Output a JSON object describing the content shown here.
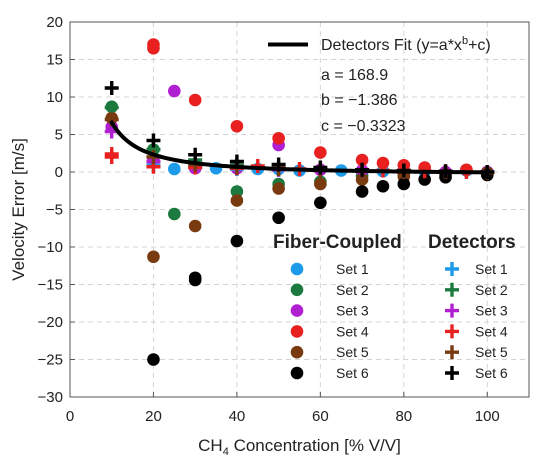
{
  "chart_data": {
    "type": "scatter",
    "xlabel": "CH₄ Concentration [% V/V]",
    "ylabel": "Velocity Error [m/s]",
    "xlim": [
      0,
      110
    ],
    "ylim": [
      -30,
      20
    ],
    "xticks": [
      0,
      20,
      40,
      60,
      80,
      100
    ],
    "yticks": [
      -30,
      -25,
      -20,
      -15,
      -10,
      -5,
      0,
      5,
      10,
      15,
      20
    ],
    "grid": "dashed, both axes",
    "legend_groups": [
      {
        "title": "Fiber-Coupled",
        "marker": "circle"
      },
      {
        "title": "Detectors",
        "marker": "plus"
      }
    ],
    "fit": {
      "label": "Detectors Fit (y=a*x",
      "label_exp": "b",
      "label_tail": "+c)",
      "a_text": "a = 168.9",
      "b_text": "b = −1.386",
      "c_text": "c = −0.3323",
      "a": 168.9,
      "b": -1.386,
      "c": -0.3323,
      "x_range": [
        10,
        100
      ]
    },
    "series": [
      {
        "name": "Set 1",
        "group": "Fiber-Coupled",
        "marker": "circle",
        "color": "#1E9BE8",
        "points": [
          [
            25,
            0.4
          ],
          [
            30,
            0.8
          ],
          [
            35,
            0.5
          ],
          [
            45,
            0.4
          ],
          [
            50,
            0.4
          ],
          [
            55,
            0.2
          ],
          [
            65,
            0.2
          ],
          [
            75,
            0.1
          ],
          [
            85,
            0.1
          ],
          [
            95,
            0.2
          ],
          [
            100,
            0.0
          ]
        ]
      },
      {
        "name": "Set 2",
        "group": "Fiber-Coupled",
        "marker": "circle",
        "color": "#1C7A3E",
        "points": [
          [
            10,
            8.7
          ],
          [
            20,
            3.0
          ],
          [
            25,
            -5.6
          ],
          [
            40,
            -2.6
          ],
          [
            50,
            -1.6
          ],
          [
            60,
            -1.3
          ],
          [
            70,
            -0.5
          ],
          [
            80,
            -0.3
          ],
          [
            90,
            -0.2
          ],
          [
            100,
            -0.1
          ]
        ]
      },
      {
        "name": "Set 3",
        "group": "Fiber-Coupled",
        "marker": "circle",
        "color": "#B020D0",
        "points": [
          [
            10,
            6.0
          ],
          [
            20,
            1.6
          ],
          [
            25,
            10.8
          ],
          [
            30,
            0.5
          ],
          [
            40,
            0.5
          ],
          [
            50,
            3.6
          ],
          [
            60,
            0.3
          ],
          [
            70,
            0.2
          ],
          [
            80,
            0.1
          ],
          [
            90,
            0.0
          ],
          [
            100,
            0.0
          ]
        ]
      },
      {
        "name": "Set 4",
        "group": "Fiber-Coupled",
        "marker": "circle",
        "color": "#E82020",
        "points": [
          [
            20,
            17.0
          ],
          [
            20,
            16.5
          ],
          [
            30,
            9.6
          ],
          [
            40,
            6.1
          ],
          [
            50,
            4.5
          ],
          [
            60,
            2.6
          ],
          [
            70,
            1.6
          ],
          [
            75,
            1.2
          ],
          [
            80,
            0.9
          ],
          [
            85,
            0.6
          ],
          [
            95,
            0.3
          ]
        ]
      },
      {
        "name": "Set 5",
        "group": "Fiber-Coupled",
        "marker": "circle",
        "color": "#7A3A10",
        "points": [
          [
            10,
            7.2
          ],
          [
            20,
            -11.3
          ],
          [
            30,
            -7.2
          ],
          [
            40,
            -3.8
          ],
          [
            50,
            -2.2
          ],
          [
            60,
            -1.6
          ],
          [
            70,
            -1.0
          ],
          [
            80,
            -0.6
          ],
          [
            90,
            -0.3
          ],
          [
            100,
            -0.1
          ]
        ]
      },
      {
        "name": "Set 6",
        "group": "Fiber-Coupled",
        "marker": "circle",
        "color": "#000000",
        "points": [
          [
            20,
            -25.0
          ],
          [
            30,
            -14.1
          ],
          [
            30,
            -14.4
          ],
          [
            40,
            -9.2
          ],
          [
            50,
            -6.1
          ],
          [
            60,
            -4.1
          ],
          [
            70,
            -2.6
          ],
          [
            75,
            -1.9
          ],
          [
            80,
            -1.6
          ],
          [
            85,
            -1.0
          ],
          [
            90,
            -0.7
          ],
          [
            100,
            -0.4
          ]
        ]
      },
      {
        "name": "Set 1",
        "group": "Detectors",
        "marker": "plus",
        "color": "#1E9BE8",
        "points": [
          [
            20,
            0.9
          ],
          [
            30,
            0.6
          ],
          [
            40,
            0.4
          ],
          [
            50,
            0.3
          ],
          [
            60,
            0.2
          ],
          [
            70,
            0.1
          ],
          [
            80,
            0.1
          ],
          [
            90,
            0.0
          ],
          [
            100,
            0.0
          ]
        ]
      },
      {
        "name": "Set 2",
        "group": "Detectors",
        "marker": "plus",
        "color": "#1C7A3E",
        "points": [
          [
            10,
            8.6
          ],
          [
            20,
            3.0
          ],
          [
            30,
            1.6
          ],
          [
            40,
            0.9
          ],
          [
            50,
            0.6
          ],
          [
            60,
            0.4
          ],
          [
            70,
            0.2
          ],
          [
            80,
            0.1
          ],
          [
            90,
            0.0
          ],
          [
            100,
            0.0
          ]
        ]
      },
      {
        "name": "Set 3",
        "group": "Detectors",
        "marker": "plus",
        "color": "#B020D0",
        "points": [
          [
            10,
            5.4
          ],
          [
            20,
            1.4
          ],
          [
            30,
            0.8
          ],
          [
            40,
            0.5
          ],
          [
            50,
            0.3
          ],
          [
            60,
            0.2
          ],
          [
            70,
            0.1
          ],
          [
            80,
            0.1
          ],
          [
            90,
            0.0
          ],
          [
            100,
            0.0
          ]
        ]
      },
      {
        "name": "Set 4",
        "group": "Detectors",
        "marker": "plus",
        "color": "#E82020",
        "points": [
          [
            10,
            2.4
          ],
          [
            10,
            2.0
          ],
          [
            20,
            0.7
          ],
          [
            30,
            0.6
          ],
          [
            40,
            0.5
          ],
          [
            45,
            0.8
          ],
          [
            50,
            0.5
          ],
          [
            55,
            0.4
          ],
          [
            60,
            0.3
          ],
          [
            70,
            0.3
          ],
          [
            75,
            0.2
          ],
          [
            80,
            0.2
          ],
          [
            85,
            0.1
          ],
          [
            90,
            0.1
          ],
          [
            95,
            0.0
          ]
        ]
      },
      {
        "name": "Set 5",
        "group": "Detectors",
        "marker": "plus",
        "color": "#7A3A10",
        "points": [
          [
            10,
            7.0
          ],
          [
            20,
            2.0
          ],
          [
            30,
            1.0
          ],
          [
            40,
            0.6
          ],
          [
            50,
            0.4
          ],
          [
            60,
            0.2
          ],
          [
            70,
            0.1
          ],
          [
            80,
            0.0
          ],
          [
            90,
            0.0
          ],
          [
            100,
            -0.1
          ]
        ]
      },
      {
        "name": "Set 6",
        "group": "Detectors",
        "marker": "plus",
        "color": "#000000",
        "points": [
          [
            10,
            11.2
          ],
          [
            20,
            4.2
          ],
          [
            30,
            2.3
          ],
          [
            40,
            1.4
          ],
          [
            50,
            1.0
          ],
          [
            60,
            0.6
          ],
          [
            70,
            0.3
          ],
          [
            80,
            0.2
          ],
          [
            90,
            0.1
          ],
          [
            100,
            0.0
          ]
        ]
      }
    ]
  }
}
